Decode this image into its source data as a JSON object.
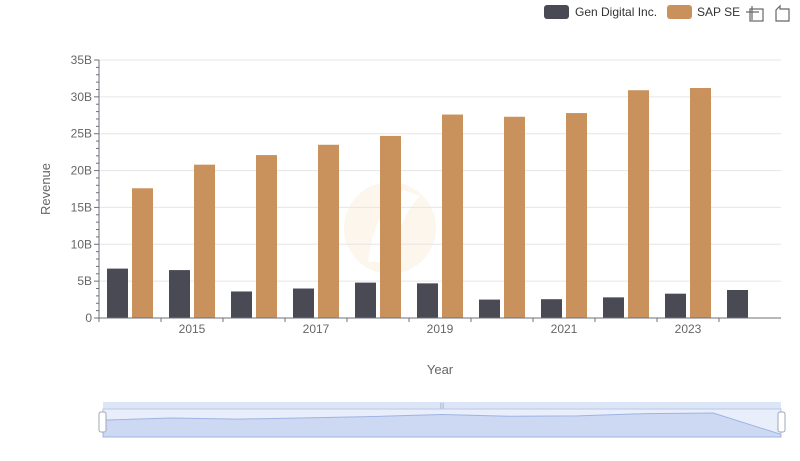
{
  "chart_data": {
    "type": "bar",
    "xlabel": "Year",
    "ylabel": "Revenue",
    "x": [
      2014,
      2015,
      2016,
      2017,
      2018,
      2019,
      2020,
      2021,
      2022,
      2023,
      2024
    ],
    "x_tick_labels": [
      "2015",
      "2017",
      "2019",
      "2021",
      "2023"
    ],
    "y_tick_labels": [
      "0",
      "5B",
      "10B",
      "15B",
      "20B",
      "25B",
      "30B",
      "35B"
    ],
    "ylim": [
      0,
      35000000000
    ],
    "grid": true,
    "legend": "top-right",
    "series": [
      {
        "name": "Gen Digital Inc.",
        "color": "#4a4a55",
        "values": [
          6700000000,
          6500000000,
          3600000000,
          4000000000,
          4800000000,
          4700000000,
          2500000000,
          2550000000,
          2800000000,
          3300000000,
          3800000000
        ]
      },
      {
        "name": "SAP SE",
        "color": "#c9915c",
        "values": [
          17600000000,
          20800000000,
          22100000000,
          23500000000,
          24700000000,
          27600000000,
          27300000000,
          27800000000,
          30900000000,
          31200000000,
          null
        ]
      }
    ]
  },
  "toolbar": {
    "icons": [
      "restore-icon",
      "zoom-back-icon"
    ]
  },
  "data_zoom": {
    "range_start": 0,
    "range_end": 100
  }
}
